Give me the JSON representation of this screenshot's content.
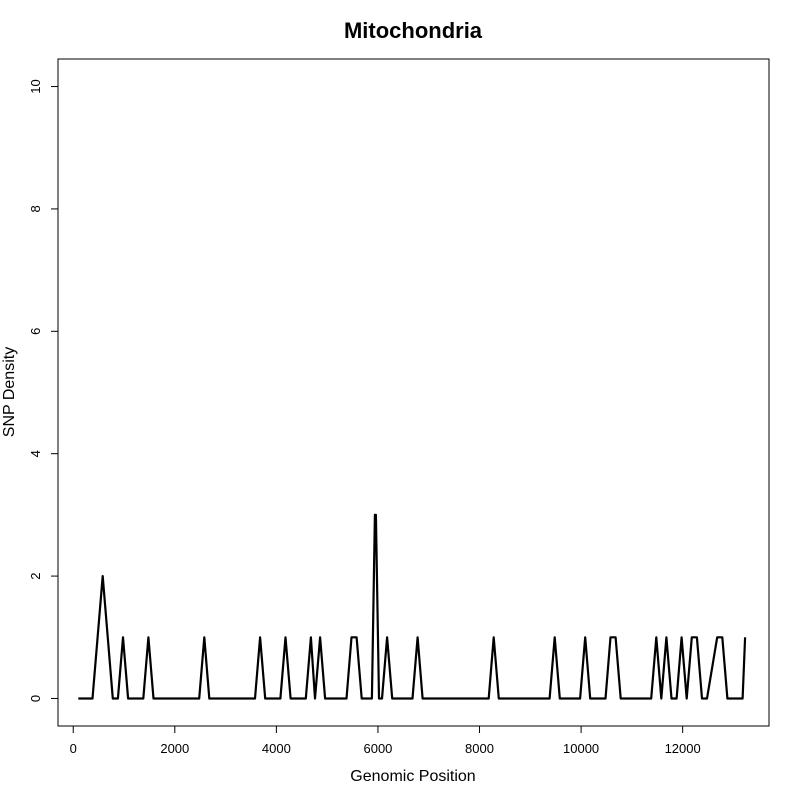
{
  "chart_data": {
    "type": "line",
    "title": "Mitochondria",
    "xlabel": "Genomic Position",
    "ylabel": "SNP Density",
    "xlim": [
      -300,
      13700
    ],
    "ylim": [
      -0.45,
      10.45
    ],
    "x_ticks": [
      0,
      2000,
      4000,
      6000,
      8000,
      10000,
      12000
    ],
    "y_ticks": [
      0,
      2,
      4,
      6,
      8,
      10
    ],
    "grid": false,
    "legend": "none",
    "line_color": "#000000",
    "series": [
      {
        "x": [
          100,
          380,
          580,
          780,
          880,
          980,
          1080,
          1380,
          1480,
          1580,
          2480,
          2580,
          2680,
          3580,
          3680,
          3780,
          4080,
          4180,
          4280,
          4580,
          4680,
          4760,
          4860,
          4960,
          5380,
          5480,
          5580,
          5680,
          5880,
          5940,
          5960,
          6020,
          6080,
          6180,
          6280,
          6680,
          6780,
          6880,
          8180,
          8280,
          8380,
          9380,
          9480,
          9580,
          9980,
          10080,
          10180,
          10480,
          10580,
          10680,
          10780,
          11380,
          11480,
          11580,
          11680,
          11780,
          11880,
          11980,
          12080,
          12180,
          12280,
          12380,
          12480,
          12680,
          12780,
          12880,
          12980,
          13180,
          13230
        ],
        "y": [
          0,
          0,
          2,
          0,
          0,
          1,
          0,
          0,
          1,
          0,
          0,
          1,
          0,
          0,
          1,
          0,
          0,
          1,
          0,
          0,
          1,
          0,
          1,
          0,
          0,
          1,
          1,
          0,
          0,
          3,
          3,
          0,
          0,
          1,
          0,
          0,
          1,
          0,
          0,
          1,
          0,
          0,
          1,
          0,
          0,
          1,
          0,
          0,
          1,
          1,
          0,
          0,
          1,
          0,
          1,
          0,
          0,
          1,
          0,
          1,
          1,
          0,
          0,
          1,
          1,
          0,
          0,
          0,
          1
        ]
      }
    ]
  }
}
